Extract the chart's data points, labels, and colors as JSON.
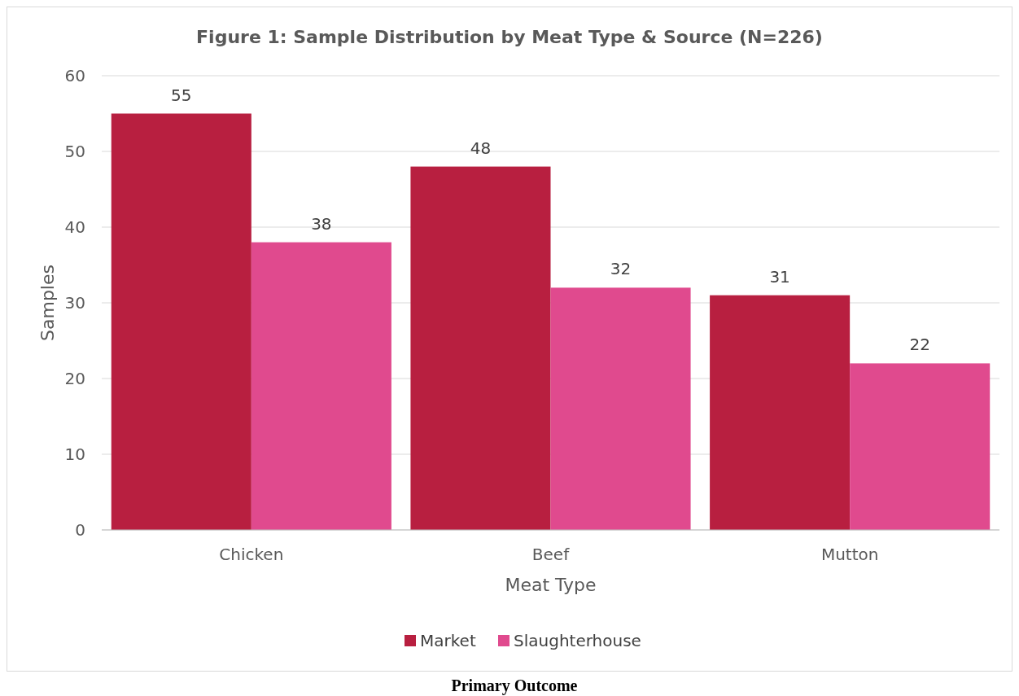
{
  "chart_data": {
    "type": "bar",
    "title": "Figure 1: Sample Distribution by Meat Type & Source (N=226)",
    "xlabel": "Meat Type",
    "ylabel": "Samples",
    "categories": [
      "Chicken",
      "Beef",
      "Mutton"
    ],
    "series": [
      {
        "name": "Market",
        "color": "#b81f40",
        "values": [
          55,
          48,
          31
        ]
      },
      {
        "name": "Slaughterhouse",
        "color": "#e04a8e",
        "values": [
          38,
          32,
          22
        ]
      }
    ],
    "ylim": [
      0,
      60
    ],
    "yticks": [
      0,
      10,
      20,
      30,
      40,
      50,
      60
    ],
    "grid": "y",
    "legend": "bottom",
    "data_labels": true,
    "annotations": [
      "Primary Outcome"
    ]
  }
}
